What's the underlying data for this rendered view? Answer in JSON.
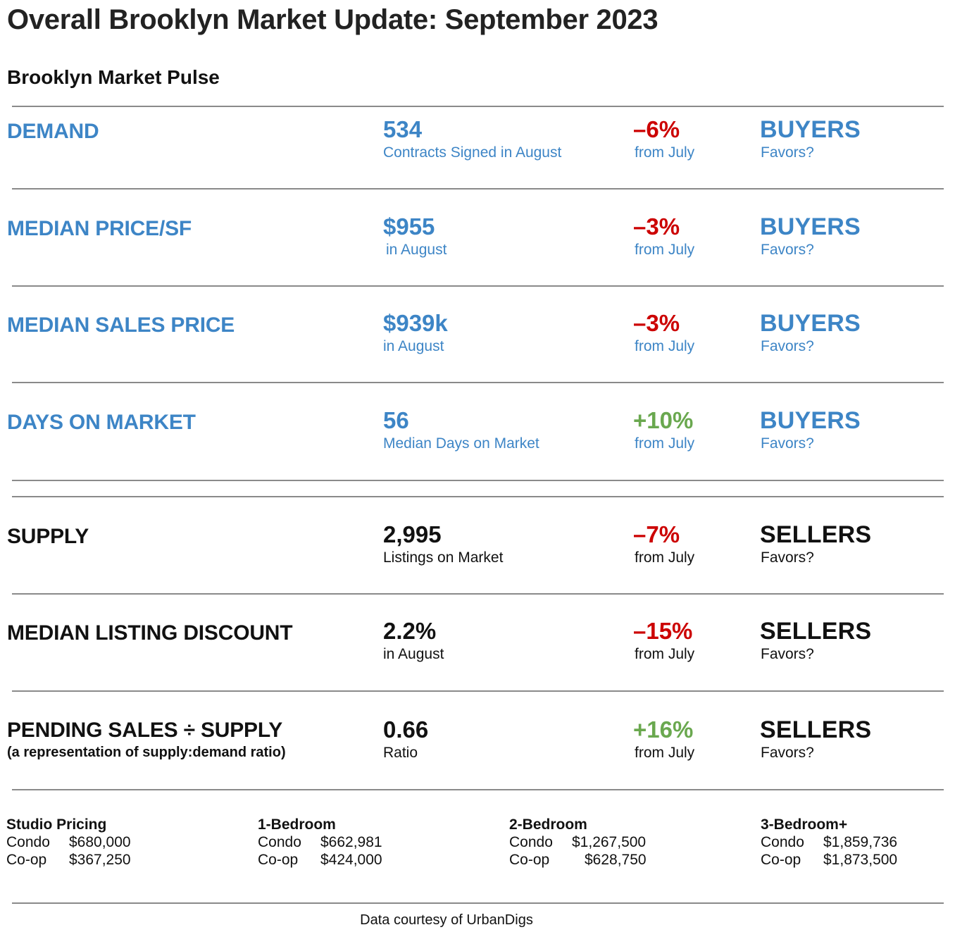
{
  "header": {
    "title": "Overall Brooklyn Market Update: September 2023",
    "subtitle": "Brooklyn Market Pulse"
  },
  "colors": {
    "demand_metric": "#3d85c6",
    "supply_metric": "#111111",
    "decrease": "#cc0000",
    "increase": "#6aa84f"
  },
  "metrics": [
    {
      "label": "DEMAND",
      "sublabel": "",
      "value": "534",
      "desc": "Contracts Signed in August",
      "change": "–6%",
      "change_desc": "from July",
      "favors": "BUYERS",
      "favors_desc": "Favors?"
    },
    {
      "label": "MEDIAN PRICE/SF",
      "sublabel": "",
      "value": "$955",
      "desc": "in August",
      "change": "–3%",
      "change_desc": "from July",
      "favors": "BUYERS",
      "favors_desc": "Favors?"
    },
    {
      "label": "MEDIAN SALES PRICE",
      "sublabel": "",
      "value": "$939k",
      "desc": "in August",
      "change": "–3%",
      "change_desc": "from July",
      "favors": "BUYERS",
      "favors_desc": "Favors?"
    },
    {
      "label": "DAYS ON MARKET",
      "sublabel": "",
      "value": "56",
      "desc": "Median Days on Market",
      "change": "+10%",
      "change_desc": "from July",
      "favors": "BUYERS",
      "favors_desc": "Favors?"
    },
    {
      "label": "SUPPLY",
      "sublabel": "",
      "value": "2,995",
      "desc": "Listings on Market",
      "change": "–7%",
      "change_desc": "from July",
      "favors": "SELLERS",
      "favors_desc": "Favors?"
    },
    {
      "label": "MEDIAN LISTING DISCOUNT",
      "sublabel": "",
      "value": "2.2%",
      "desc": "in August",
      "change": "–15%",
      "change_desc": "from July",
      "favors": "SELLERS",
      "favors_desc": "Favors?"
    },
    {
      "label": "PENDING SALES ÷ SUPPLY",
      "sublabel": "(a representation of supply:demand ratio)",
      "value": "0.66",
      "desc": "Ratio",
      "change": "+16%",
      "change_desc": "from July",
      "favors": "SELLERS",
      "favors_desc": "Favors?"
    }
  ],
  "pricing": [
    {
      "title": "Studio Pricing",
      "condo_label": "Condo",
      "condo_price": "$680,000",
      "coop_label": "Co-op",
      "coop_price": "$367,250"
    },
    {
      "title": "1-Bedroom",
      "condo_label": "Condo",
      "condo_price": "$662,981",
      "coop_label": "Co-op",
      "coop_price": "$424,000"
    },
    {
      "title": "2-Bedroom",
      "condo_label": "Condo",
      "condo_price": "$1,267,500",
      "coop_label": "Co-op",
      "coop_price": "$628,750"
    },
    {
      "title": "3-Bedroom+",
      "condo_label": "Condo",
      "condo_price": "$1,859,736",
      "coop_label": "Co-op",
      "coop_price": "$1,873,500"
    }
  ],
  "footer": {
    "credit": "Data courtesy of UrbanDigs"
  }
}
